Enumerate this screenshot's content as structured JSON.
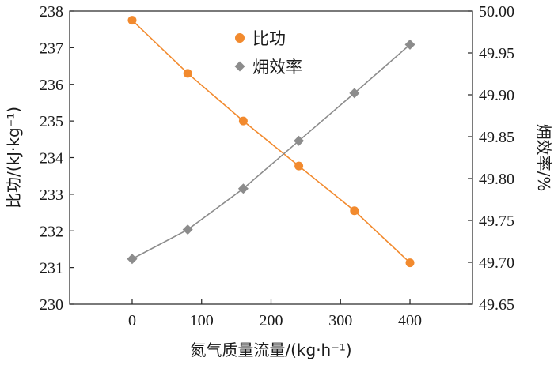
{
  "chart_data": {
    "type": "line",
    "x": [
      0,
      80,
      160,
      240,
      320,
      400
    ],
    "xlabel": "氮气质量流量/(kg·h⁻¹)",
    "xlim": [
      -90,
      490
    ],
    "xticks": [
      0,
      100,
      200,
      300,
      400
    ],
    "ylabel_left": "比功/(kJ·kg⁻¹)",
    "ylim_left": [
      230,
      238
    ],
    "yticks_left": [
      230,
      231,
      232,
      233,
      234,
      235,
      236,
      237,
      238
    ],
    "ylabel_right": "㶲效率/%",
    "ylim_right": [
      49.65,
      50.0
    ],
    "yticks_right": [
      "49.65",
      "49.70",
      "49.75",
      "49.80",
      "49.85",
      "49.90",
      "49.95",
      "50.00"
    ],
    "series": [
      {
        "name": "比功",
        "axis": "left",
        "color": "#f28a2e",
        "marker": "circle",
        "values": [
          237.75,
          236.3,
          235.0,
          233.77,
          232.55,
          231.13
        ]
      },
      {
        "name": "㶲效率",
        "axis": "right",
        "color": "#8c8c8c",
        "marker": "diamond",
        "values": [
          49.704,
          49.739,
          49.788,
          49.845,
          49.902,
          49.96
        ]
      }
    ],
    "grid": false,
    "legend_position": "top-center"
  }
}
